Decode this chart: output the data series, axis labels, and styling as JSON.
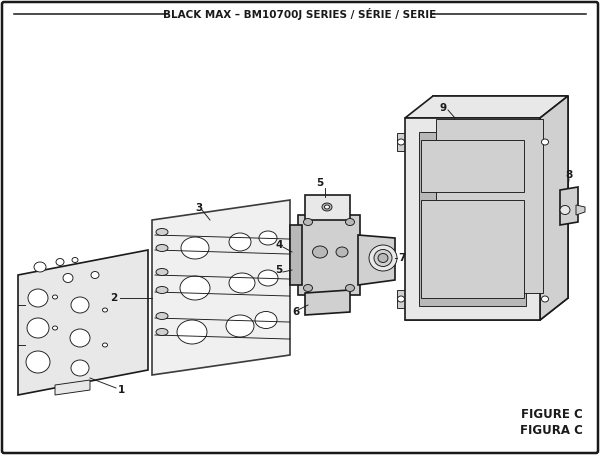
{
  "title": "BLACK MAX – BM10700J SERIES / SÉRIE / SERIE",
  "figure_label": "FIGURE C",
  "figura_label": "FIGURA C",
  "bg_color": "#ffffff",
  "line_color": "#1a1a1a",
  "text_color": "#1a1a1a",
  "title_fontsize": 7.5,
  "label_fontsize": 7.5,
  "figure_label_fontsize": 8.5,
  "lw_main": 1.2,
  "lw_thin": 0.65,
  "gray_light": "#e8e8e8",
  "gray_mid": "#d0d0d0",
  "gray_dark": "#b8b8b8",
  "white": "#ffffff"
}
